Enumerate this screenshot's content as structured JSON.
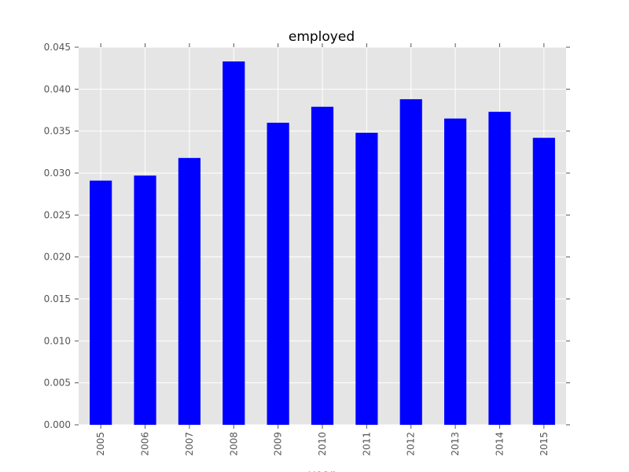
{
  "chart_data": {
    "type": "bar",
    "title": "employed",
    "xlabel": "year",
    "ylabel": "",
    "categories": [
      "2005",
      "2006",
      "2007",
      "2008",
      "2009",
      "2010",
      "2011",
      "2012",
      "2013",
      "2014",
      "2015"
    ],
    "values": [
      0.0291,
      0.0297,
      0.0318,
      0.0433,
      0.036,
      0.0379,
      0.0348,
      0.0388,
      0.0365,
      0.0373,
      0.0342
    ],
    "ylim": [
      0,
      0.045
    ],
    "yticks": [
      "0.000",
      "0.005",
      "0.010",
      "0.015",
      "0.020",
      "0.025",
      "0.030",
      "0.035",
      "0.040",
      "0.045"
    ],
    "grid": true,
    "bar_color": "#0000ff",
    "plot_background": "#e5e5e5",
    "grid_color": "#ffffff"
  }
}
